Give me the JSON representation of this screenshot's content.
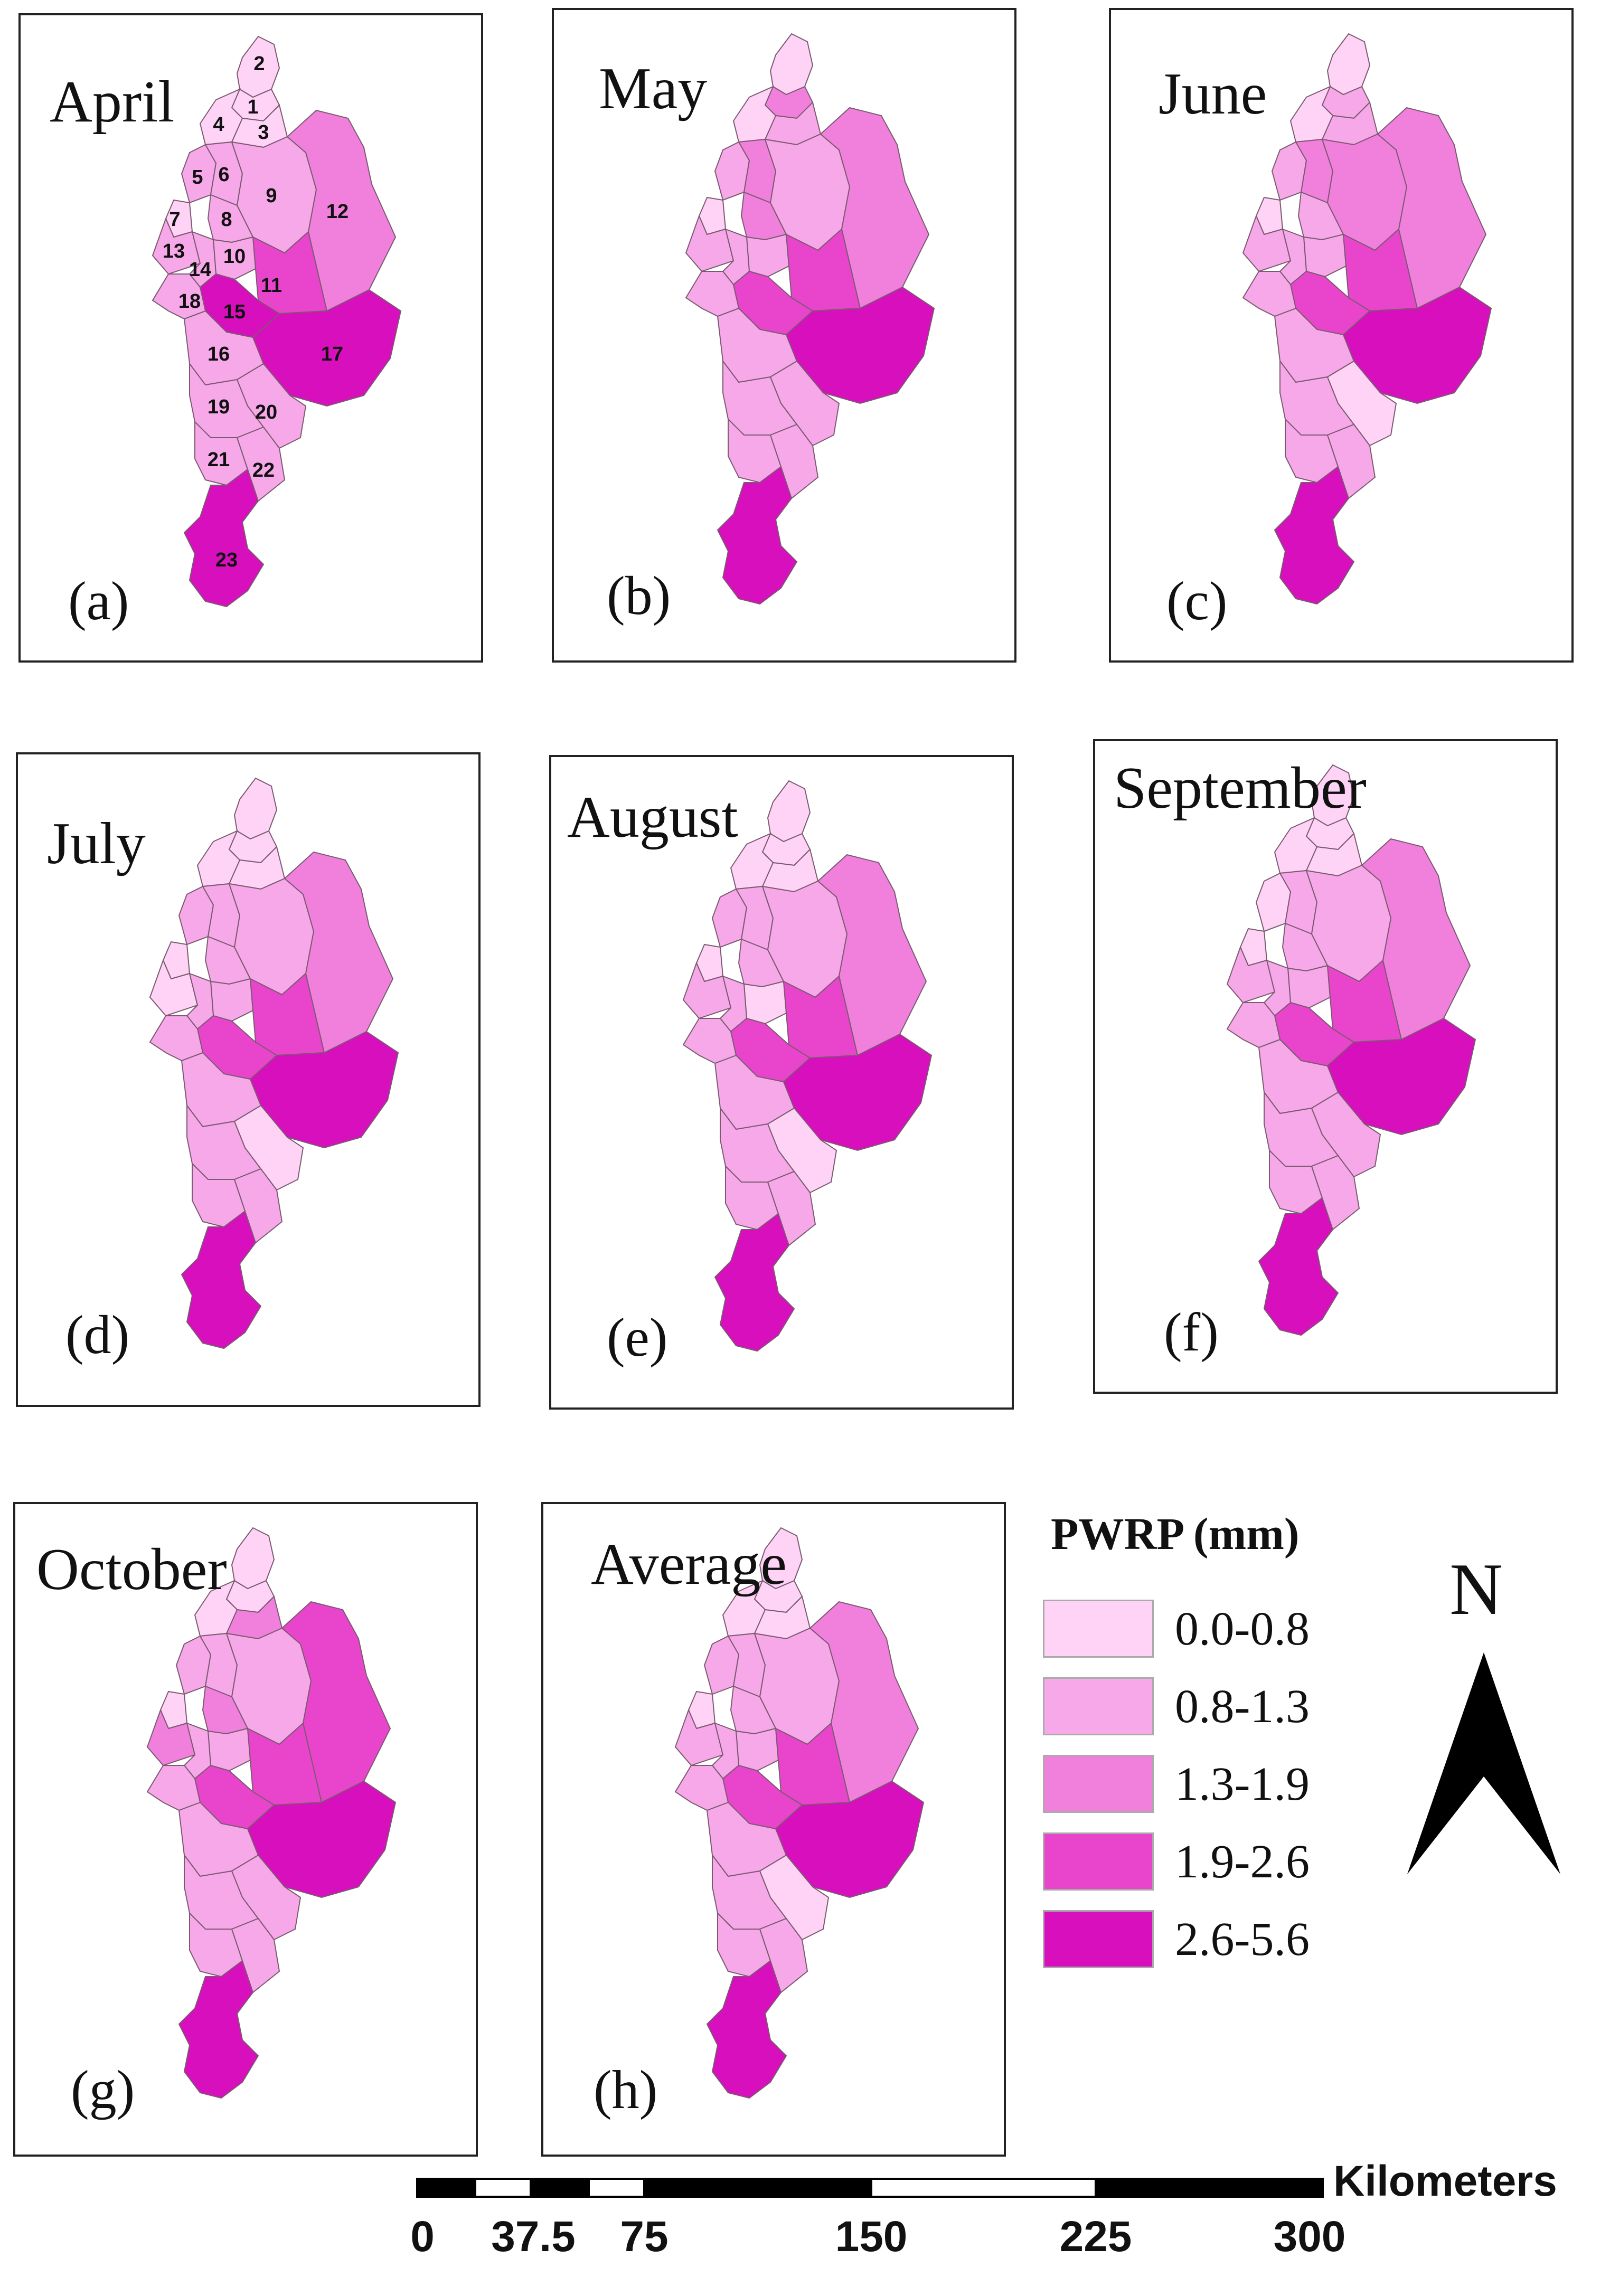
{
  "figure": {
    "legend_title": "PWRP (mm)",
    "north_label": "N",
    "scale_unit": "Kilometers",
    "scale_ticks": [
      "0",
      "37.5",
      "75",
      "150",
      "225",
      "300"
    ]
  },
  "legend": [
    {
      "range": "0.0-0.8",
      "color": "#ffd3f6"
    },
    {
      "range": "0.8-1.3",
      "color": "#f7a8e8"
    },
    {
      "range": "1.3-1.9",
      "color": "#f080dc"
    },
    {
      "range": "1.9-2.6",
      "color": "#e845cc"
    },
    {
      "range": "2.6-5.6",
      "color": "#d80fbd"
    }
  ],
  "panels": [
    {
      "title": "April",
      "label": "(a)",
      "district_numbers": [
        "1",
        "2",
        "3",
        "4",
        "5",
        "6",
        "7",
        "8",
        "9",
        "10",
        "11",
        "12",
        "13",
        "14",
        "15",
        "16",
        "17",
        "18",
        "19",
        "20",
        "21",
        "22",
        "23"
      ]
    },
    {
      "title": "May",
      "label": "(b)"
    },
    {
      "title": "June",
      "label": "(c)"
    },
    {
      "title": "July",
      "label": "(d)"
    },
    {
      "title": "August",
      "label": "(e)"
    },
    {
      "title": "September",
      "label": "(f)"
    },
    {
      "title": "October",
      "label": "(g)"
    },
    {
      "title": "Average",
      "label": "(h)"
    }
  ]
}
